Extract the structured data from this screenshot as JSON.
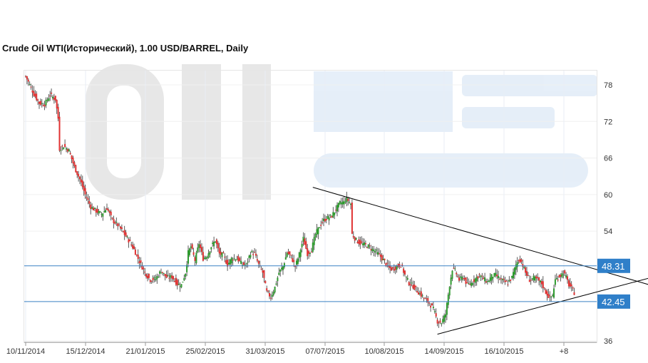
{
  "chart_data": {
    "type": "candlestick",
    "title": "Crude Oil WTI(Исторический), 1.00 USD/BARREL, Daily",
    "y_ticks": [
      78,
      72,
      66,
      60,
      54,
      36
    ],
    "x_tick_labels": [
      "10/11/2014",
      "15/12/2014",
      "21/01/2015",
      "25/02/2015",
      "31/03/2015",
      "07/07/2015",
      "10/08/2015",
      "14/09/2015",
      "16/10/2015",
      "+8"
    ],
    "levels": [
      {
        "label": "48.31",
        "value": 48.31
      },
      {
        "label": "42.45",
        "value": 42.45
      }
    ],
    "trendlines": [
      {
        "name": "upper",
        "from": {
          "bar": 212,
          "price": 61.2
        },
        "to": {
          "bar": 462,
          "price": 45.1
        }
      },
      {
        "name": "lower",
        "from": {
          "bar": 304,
          "price": 37.1
        },
        "to": {
          "bar": 462,
          "price": 46.4
        }
      }
    ],
    "close_path": [
      [
        0,
        79.4
      ],
      [
        3,
        78.0
      ],
      [
        6,
        76.5
      ],
      [
        10,
        75.0
      ],
      [
        14,
        74.8
      ],
      [
        18,
        76.4
      ],
      [
        22,
        75.6
      ],
      [
        24,
        72.5
      ],
      [
        25,
        67.5
      ],
      [
        28,
        68.0
      ],
      [
        32,
        67.2
      ],
      [
        36,
        64.5
      ],
      [
        40,
        62.5
      ],
      [
        44,
        60.0
      ],
      [
        48,
        58.0
      ],
      [
        52,
        57.3
      ],
      [
        56,
        56.8
      ],
      [
        60,
        57.8
      ],
      [
        64,
        55.8
      ],
      [
        68,
        55.0
      ],
      [
        72,
        53.8
      ],
      [
        76,
        52.5
      ],
      [
        80,
        51.0
      ],
      [
        84,
        49.0
      ],
      [
        88,
        47.2
      ],
      [
        92,
        46.0
      ],
      [
        96,
        46.2
      ],
      [
        100,
        47.5
      ],
      [
        104,
        46.4
      ],
      [
        108,
        46.5
      ],
      [
        112,
        45.3
      ],
      [
        115,
        45.2
      ],
      [
        118,
        47.2
      ],
      [
        120,
        50.5
      ],
      [
        122,
        51.5
      ],
      [
        125,
        49.2
      ],
      [
        128,
        52.0
      ],
      [
        131,
        49.5
      ],
      [
        134,
        50.0
      ],
      [
        137,
        51.5
      ],
      [
        140,
        52.5
      ],
      [
        143,
        50.3
      ],
      [
        146,
        50.0
      ],
      [
        149,
        48.5
      ],
      [
        152,
        49.5
      ],
      [
        156,
        49.5
      ],
      [
        160,
        48.5
      ],
      [
        163,
        48.5
      ],
      [
        166,
        50.5
      ],
      [
        169,
        50.3
      ],
      [
        172,
        48.5
      ],
      [
        175,
        47.2
      ],
      [
        178,
        44.0
      ],
      [
        181,
        43.2
      ],
      [
        184,
        44.8
      ],
      [
        187,
        47.2
      ],
      [
        190,
        48.2
      ],
      [
        193,
        50.5
      ],
      [
        196,
        49.8
      ],
      [
        199,
        48.2
      ],
      [
        202,
        50.2
      ],
      [
        205,
        52.8
      ],
      [
        208,
        50.3
      ],
      [
        211,
        51.0
      ],
      [
        214,
        53.5
      ],
      [
        217,
        54.8
      ],
      [
        220,
        55.8
      ],
      [
        223,
        56.2
      ],
      [
        226,
        56.5
      ],
      [
        229,
        57.6
      ],
      [
        232,
        58.6
      ],
      [
        235,
        58.8
      ],
      [
        237,
        59.3
      ],
      [
        240,
        58.5
      ],
      [
        241,
        53.5
      ],
      [
        244,
        52.5
      ],
      [
        247,
        52.0
      ],
      [
        250,
        51.8
      ],
      [
        253,
        51.5
      ],
      [
        256,
        51.0
      ],
      [
        259,
        50.6
      ],
      [
        262,
        49.8
      ],
      [
        265,
        49.0
      ],
      [
        268,
        48.0
      ],
      [
        271,
        47.7
      ],
      [
        274,
        48.2
      ],
      [
        277,
        48.5
      ],
      [
        280,
        46.8
      ],
      [
        283,
        45.5
      ],
      [
        286,
        45.0
      ],
      [
        289,
        44.2
      ],
      [
        292,
        43.5
      ],
      [
        295,
        42.8
      ],
      [
        298,
        42.2
      ],
      [
        301,
        41.2
      ],
      [
        304,
        39.2
      ],
      [
        307,
        39.0
      ],
      [
        310,
        40.4
      ],
      [
        313,
        45.2
      ],
      [
        315,
        47.8
      ],
      [
        317,
        47.5
      ],
      [
        320,
        46.0
      ],
      [
        323,
        46.5
      ],
      [
        326,
        45.2
      ],
      [
        329,
        45.5
      ],
      [
        332,
        46.2
      ],
      [
        335,
        46.8
      ],
      [
        338,
        46.2
      ],
      [
        341,
        45.7
      ],
      [
        344,
        46.6
      ],
      [
        347,
        46.8
      ],
      [
        350,
        46.2
      ],
      [
        353,
        45.7
      ],
      [
        356,
        45.5
      ],
      [
        359,
        46.4
      ],
      [
        362,
        48.5
      ],
      [
        364,
        49.4
      ],
      [
        366,
        49.0
      ],
      [
        369,
        47.2
      ],
      [
        372,
        46.0
      ],
      [
        375,
        46.3
      ],
      [
        378,
        46.0
      ],
      [
        381,
        45.4
      ],
      [
        384,
        44.0
      ],
      [
        387,
        43.0
      ],
      [
        389,
        43.5
      ],
      [
        391,
        46.0
      ],
      [
        393,
        46.4
      ],
      [
        395,
        46.8
      ],
      [
        397,
        47.2
      ],
      [
        399,
        46.4
      ],
      [
        401,
        45.2
      ],
      [
        403,
        44.6
      ],
      [
        405,
        43.9
      ]
    ]
  }
}
